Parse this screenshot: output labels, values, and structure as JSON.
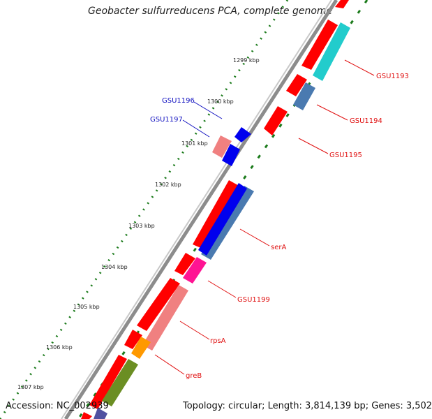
{
  "title": "Geobacter sulfurreducens PCA, complete genome",
  "footer": {
    "accession": "Accession: NC_002939",
    "topology": "Topology: circular; Length: 3,814,139 bp; Genes: 3,502"
  },
  "ticks": [
    "1299 kbp",
    "1300 kbp",
    "1301 kbp",
    "1302 kbp",
    "1303 kbp",
    "1304 kbp",
    "1305 kbp",
    "1306 kbp",
    "1307 kbp"
  ],
  "gene_labels": {
    "gsu1193": "GSU1193",
    "gsu1194": "GSU1194",
    "gsu1195": "GSU1195",
    "gsu1196": "GSU1196",
    "gsu1197": "GSU1197",
    "serA": "serA",
    "gsu1199": "GSU1199",
    "rpsA": "rpsA",
    "greB": "greB"
  },
  "colors": {
    "cds": "#ff0000",
    "label_red": "#e01010",
    "label_blue": "#1010c0",
    "backbone": "#8c8c8c",
    "ring_dots": "#1a7a1a",
    "cyan": "#22cccc",
    "steelblue": "#4a7ab0",
    "blue": "#0000ee",
    "salmon": "#f08080",
    "magenta": "#ff1493",
    "orange": "#ff9900",
    "olive": "#6b8e23"
  }
}
